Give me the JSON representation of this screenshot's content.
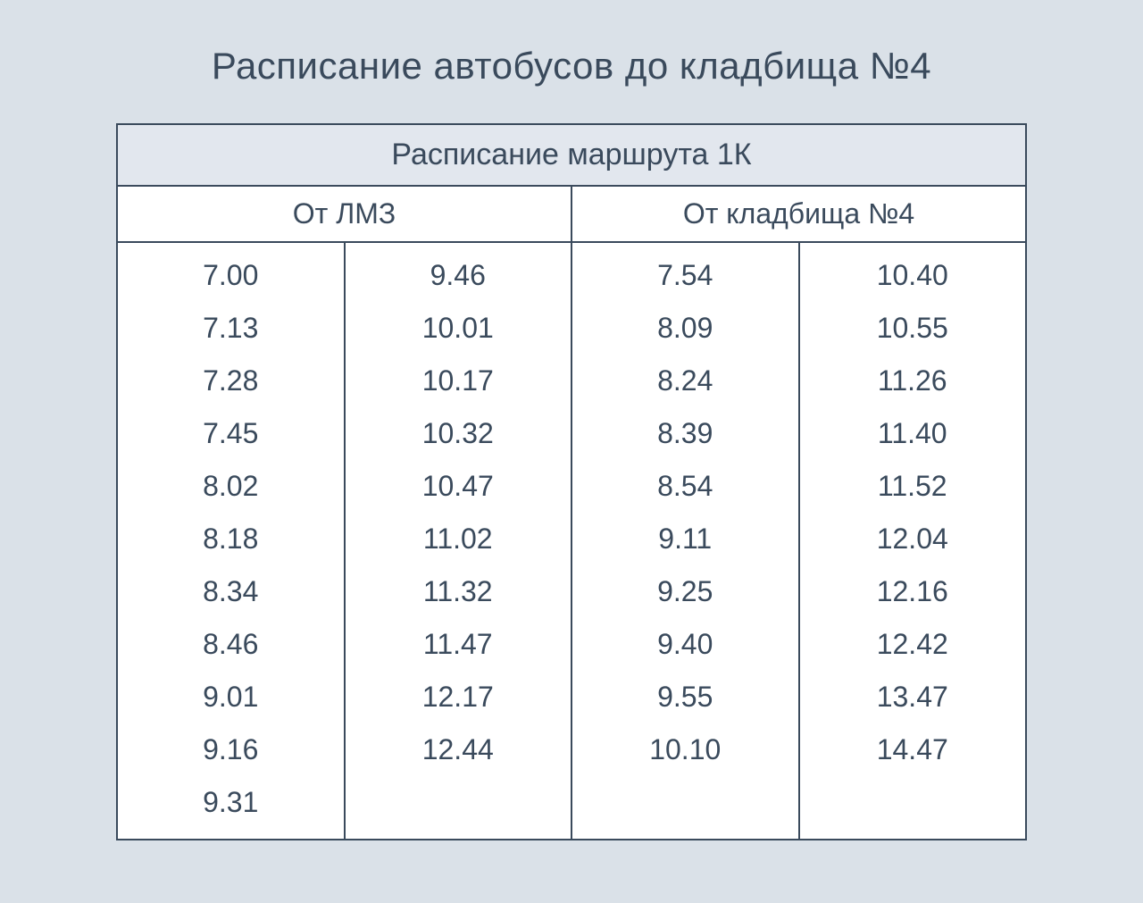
{
  "page_title": "Расписание автобусов до кладбища №4",
  "route_header": "Расписание маршрута 1К",
  "colors": {
    "page_bg": "#dae1e8",
    "table_bg": "#ffffff",
    "header_bg": "#e2e7ee",
    "border": "#3a4a5c",
    "text": "#3a4a5c"
  },
  "directions": [
    {
      "label": "От ЛМЗ"
    },
    {
      "label": "От кладбища №4"
    }
  ],
  "columns": [
    [
      "7.00",
      "7.13",
      "7.28",
      "7.45",
      "8.02",
      "8.18",
      "8.34",
      "8.46",
      "9.01",
      "9.16",
      "9.31"
    ],
    [
      "9.46",
      "10.01",
      "10.17",
      "10.32",
      "10.47",
      "11.02",
      "11.32",
      "11.47",
      "12.17",
      "12.44"
    ],
    [
      "7.54",
      "8.09",
      "8.24",
      "8.39",
      "8.54",
      "9.11",
      "9.25",
      "9.40",
      "9.55",
      "10.10"
    ],
    [
      "10.40",
      "10.55",
      "11.26",
      "11.40",
      "11.52",
      "12.04",
      "12.16",
      "12.42",
      "13.47",
      "14.47"
    ]
  ],
  "font_sizes": {
    "title": 42,
    "route_header": 34,
    "direction_header": 32,
    "time_entry": 32
  }
}
